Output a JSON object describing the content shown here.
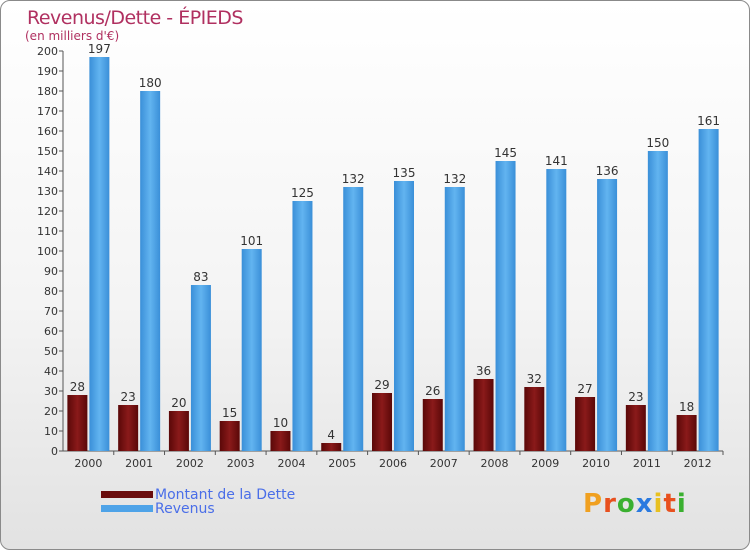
{
  "title": "Revenus/Dette - ÉPIEDS",
  "subtitle": "(en milliers d'€)",
  "colors": {
    "dette": "#7a1010",
    "revenus": "#4ea3e8",
    "title": "#b03060",
    "legend_text": "#4a6ee8"
  },
  "legend": [
    {
      "label": "Montant de la Dette",
      "color": "#6a0c0c"
    },
    {
      "label": "Revenus",
      "color": "#4ea3e8"
    }
  ],
  "logo": {
    "letters": [
      "P",
      "r",
      "o",
      "x",
      "i",
      "t",
      "i"
    ],
    "colors": [
      "#f0a020",
      "#e8501e",
      "#3ab030",
      "#2a7ae0",
      "#e8c020",
      "#e8501e",
      "#3ab030"
    ]
  },
  "chart_data": {
    "type": "bar",
    "title": "Revenus/Dette - ÉPIEDS",
    "subtitle": "(en milliers d'€)",
    "categories": [
      "2000",
      "2001",
      "2002",
      "2003",
      "2004",
      "2005",
      "2006",
      "2007",
      "2008",
      "2009",
      "2010",
      "2011",
      "2012"
    ],
    "series": [
      {
        "name": "Montant de la Dette",
        "values": [
          28,
          23,
          20,
          15,
          10,
          4,
          29,
          26,
          36,
          32,
          27,
          23,
          18
        ]
      },
      {
        "name": "Revenus",
        "values": [
          197,
          180,
          83,
          101,
          125,
          132,
          135,
          132,
          145,
          141,
          136,
          150,
          161
        ]
      }
    ],
    "ylim": [
      0,
      200
    ],
    "yticks": [
      0,
      10,
      20,
      30,
      40,
      50,
      60,
      70,
      80,
      90,
      100,
      110,
      120,
      130,
      140,
      150,
      160,
      170,
      180,
      190,
      200
    ],
    "grid": false,
    "legend_position": "bottom-left"
  }
}
